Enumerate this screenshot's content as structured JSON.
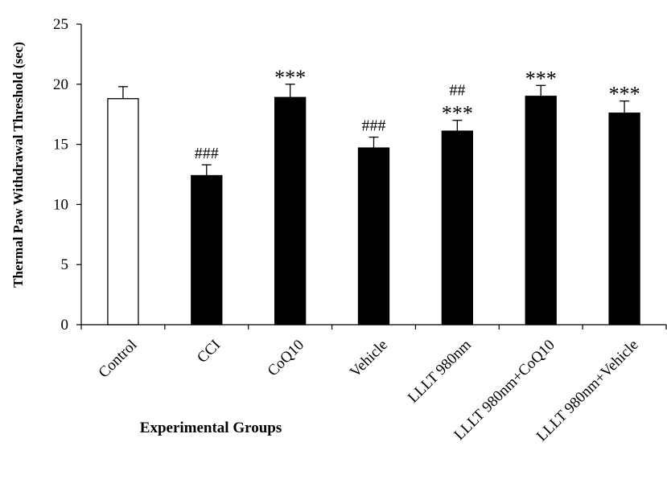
{
  "chart_data": {
    "type": "bar",
    "title": "",
    "xlabel": "Experimental Groups",
    "ylabel": "Thermal Paw Withdrawal Threshold (sec)",
    "ylim": [
      0,
      25
    ],
    "yticks": [
      "0",
      "5",
      "10",
      "15",
      "20",
      "25"
    ],
    "grid": false,
    "categories": [
      "Control",
      "CCI",
      "CoQ10",
      "Vehicle",
      "LLLT 980nm",
      "LLLT 980nm+CoQ10",
      "LLLT 980nm+Vehicle"
    ],
    "values": [
      18.8,
      12.4,
      18.9,
      14.7,
      16.1,
      19.0,
      17.6
    ],
    "errors": [
      1.0,
      0.9,
      1.1,
      0.9,
      0.9,
      0.9,
      1.0
    ],
    "annotations": [
      [
        "",
        ""
      ],
      [
        "###",
        ""
      ],
      [
        "***",
        ""
      ],
      [
        "###",
        ""
      ],
      [
        "##",
        "***"
      ],
      [
        "***",
        ""
      ],
      [
        "***",
        ""
      ]
    ],
    "bar_colors": [
      "#ffffff",
      "#000000",
      "#000000",
      "#000000",
      "#000000",
      "#000000",
      "#000000"
    ]
  }
}
